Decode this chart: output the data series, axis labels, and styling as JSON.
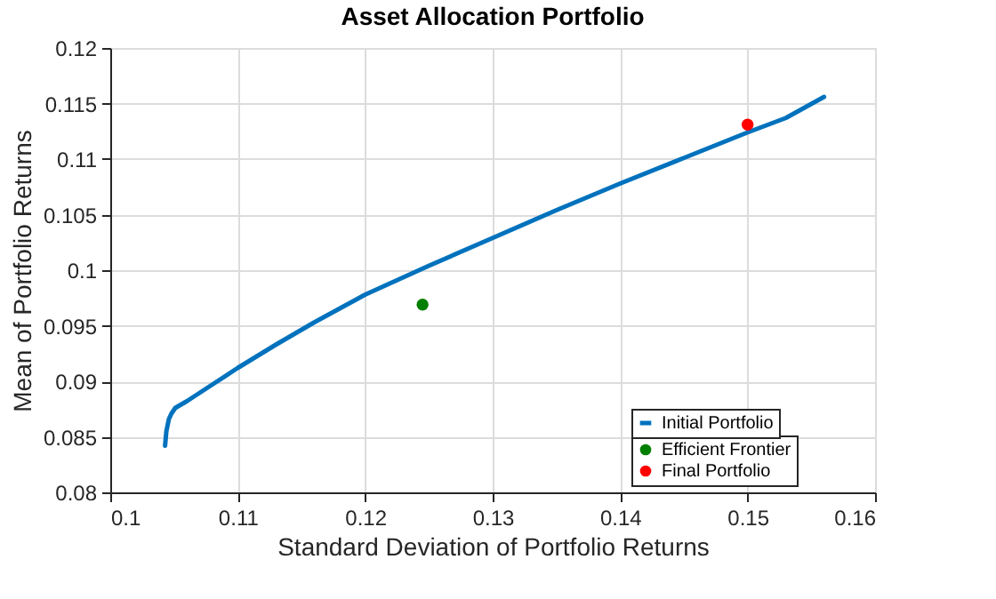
{
  "chart_data": {
    "type": "line",
    "title": "Asset Allocation Portfolio",
    "xlabel": "Standard Deviation of Portfolio Returns",
    "ylabel": "Mean of Portfolio Returns",
    "xlim": [
      0.1,
      0.16
    ],
    "ylim": [
      0.08,
      0.12
    ],
    "xticks": [
      0.1,
      0.11,
      0.12,
      0.13,
      0.14,
      0.15,
      0.16
    ],
    "yticks": [
      0.08,
      0.085,
      0.09,
      0.095,
      0.1,
      0.105,
      0.11,
      0.115,
      0.12
    ],
    "grid": true,
    "legend": "bottom right",
    "series": [
      {
        "name": "Initial Portfolio",
        "type": "line",
        "color": "#0072bd",
        "x": [
          0.1043,
          0.1044,
          0.1046,
          0.1048,
          0.1051,
          0.106,
          0.108,
          0.11,
          0.113,
          0.116,
          0.12,
          0.125,
          0.13,
          0.135,
          0.14,
          0.145,
          0.15,
          0.153,
          0.156
        ],
        "values": [
          0.0842,
          0.0855,
          0.0866,
          0.0871,
          0.0876,
          0.0882,
          0.0897,
          0.0912,
          0.0933,
          0.0953,
          0.0978,
          0.1004,
          0.1029,
          0.1054,
          0.1078,
          0.1101,
          0.1124,
          0.1137,
          0.1156
        ]
      },
      {
        "name": "Efficient Frontier",
        "type": "scatter",
        "color": "#007f00",
        "x": [
          0.1245
        ],
        "values": [
          0.0969
        ]
      },
      {
        "name": "Final Portfolio",
        "type": "scatter",
        "color": "#ff0000",
        "x": [
          0.15
        ],
        "values": [
          0.1131
        ]
      }
    ]
  }
}
